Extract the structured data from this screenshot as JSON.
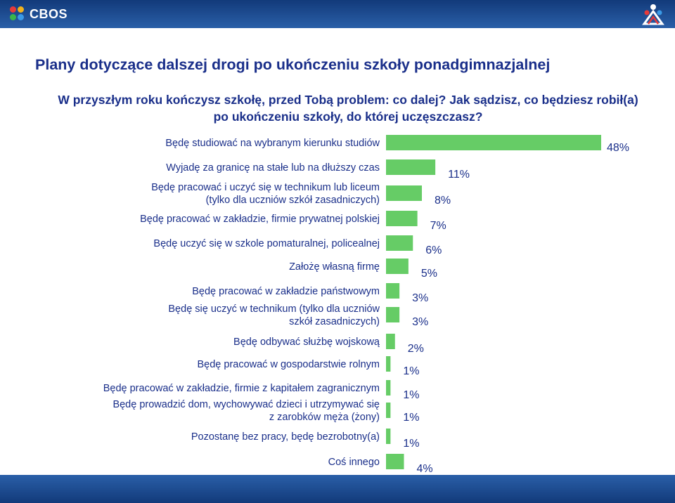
{
  "header": {
    "logo_text": "CBOS",
    "logo_name": "cbos-logo",
    "corner_icon": "people-group-icon"
  },
  "title": "Plany dotyczące dalszej drogi po ukończeniu szkoły ponadgimnazjalnej",
  "subtitle": "W przyszłym roku kończysz szkołę, przed Tobą problem: co dalej? Jak sądzisz, co będziesz robił(a) po ukończeniu szkoły, do której uczęszczasz?",
  "colors": {
    "bar": "#66cc66",
    "title": "#1a2f8a",
    "bars_bg": "#ffffff",
    "header": "#1f4a8f"
  },
  "chart_data": {
    "type": "bar",
    "orientation": "horizontal",
    "title": "",
    "xlabel": "",
    "ylabel": "",
    "xlim": [
      0,
      48
    ],
    "grid": false,
    "legend": "none",
    "categories": [
      [
        "Będę studiować na wybranym kierunku studiów"
      ],
      [
        "Wyjadę za granicę na stałe lub na dłuższy czas"
      ],
      [
        "Będę pracować i uczyć się w technikum lub liceum",
        "(tylko dla uczniów szkół zasadniczych)"
      ],
      [
        "Będę pracować w zakładzie, firmie prywatnej polskiej"
      ],
      [
        "Będę uczyć się w szkole pomaturalnej, policealnej"
      ],
      [
        "Założę własną firmę"
      ],
      [
        "Będę pracować w zakładzie państwowym"
      ],
      [
        "Będę się uczyć w technikum (tylko dla uczniów",
        "szkół zasadniczych)"
      ],
      [
        "Będę odbywać służbę wojskową"
      ],
      [
        "Będę pracować w gospodarstwie rolnym"
      ],
      [
        "Będę pracować w zakładzie, firmie z kapitałem zagranicznym"
      ],
      [
        "Będę prowadzić dom, wychowywać dzieci i utrzymywać się",
        "z zarobków męża (żony)"
      ],
      [
        "Pozostanę bez pracy, będę bezrobotny(a)"
      ],
      [
        "Coś innego"
      ]
    ],
    "values": [
      48,
      11,
      8,
      7,
      6,
      5,
      3,
      3,
      2,
      1,
      1,
      1,
      1,
      4
    ],
    "data_labels": [
      "48%",
      "11%",
      "8%",
      "7%",
      "6%",
      "5%",
      "3%",
      "3%",
      "2%",
      "1%",
      "1%",
      "1%",
      "1%",
      "4%"
    ]
  }
}
